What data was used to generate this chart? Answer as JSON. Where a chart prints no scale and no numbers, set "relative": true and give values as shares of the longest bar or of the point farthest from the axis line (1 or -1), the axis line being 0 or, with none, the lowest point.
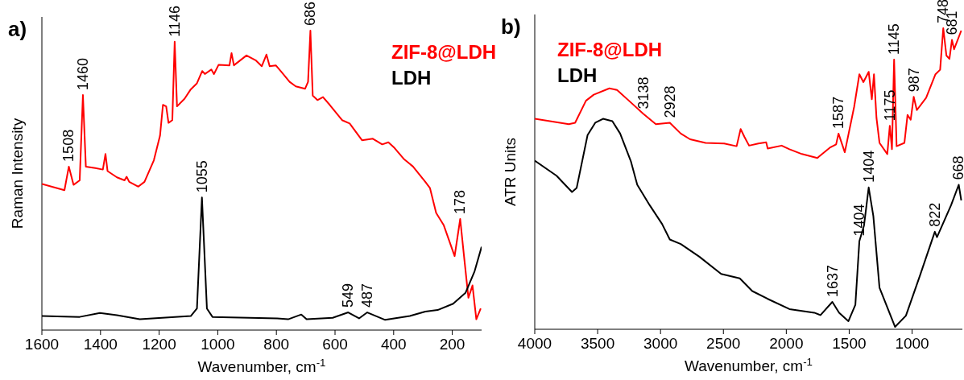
{
  "chart_data": [
    {
      "type": "line",
      "title": "a)",
      "xlabel": "Wavenumber, cm$^{-1}$",
      "ylabel": "Raman Intensity",
      "relative": true,
      "xlim": [
        1600,
        100
      ],
      "xticks": [
        1600,
        1400,
        1200,
        1000,
        800,
        600,
        400,
        200
      ],
      "tick_labels": "x",
      "legend": "top right",
      "series": [
        {
          "name": "ZIF-8@LDH",
          "color": "#ff0000",
          "x": [
            1600,
            1523,
            1508,
            1492,
            1471,
            1460,
            1450,
            1418,
            1392,
            1383,
            1376,
            1344,
            1318,
            1311,
            1302,
            1271,
            1250,
            1218,
            1197,
            1187,
            1176,
            1168,
            1155,
            1147,
            1139,
            1113,
            1092,
            1071,
            1053,
            1044,
            1022,
            1013,
            997,
            960,
            953,
            945,
            902,
            871,
            850,
            834,
            823,
            802,
            781,
            755,
            734,
            702,
            692,
            684,
            676,
            660,
            641,
            618,
            576,
            550,
            508,
            471,
            439,
            418,
            397,
            366,
            334,
            292,
            276,
            255,
            229,
            192,
            173,
            160,
            145,
            131,
            118,
            103
          ],
          "values": [
            0.488,
            0.467,
            0.546,
            0.485,
            0.5,
            0.785,
            0.546,
            0.541,
            0.536,
            0.588,
            0.531,
            0.51,
            0.5,
            0.512,
            0.495,
            0.479,
            0.495,
            0.567,
            0.649,
            0.752,
            0.747,
            0.692,
            0.701,
            0.963,
            0.747,
            0.773,
            0.804,
            0.824,
            0.865,
            0.855,
            0.87,
            0.855,
            0.886,
            0.884,
            0.925,
            0.884,
            0.917,
            0.901,
            0.881,
            0.92,
            0.881,
            0.884,
            0.86,
            0.829,
            0.814,
            0.806,
            0.829,
            1,
            0.783,
            0.768,
            0.778,
            0.752,
            0.701,
            0.69,
            0.634,
            0.639,
            0.62,
            0.627,
            0.608,
            0.572,
            0.546,
            0.495,
            0.474,
            0.391,
            0.35,
            0.247,
            0.371,
            0.247,
            0.108,
            0.149,
            0.036,
            0.072
          ]
        },
        {
          "name": "LDH",
          "color": "#000000",
          "x": [
            1600,
            1471,
            1402,
            1344,
            1266,
            1092,
            1071,
            1054,
            1037,
            1018,
            797,
            760,
            715,
            697,
            608,
            555,
            518,
            490,
            429,
            345,
            292,
            250,
            197,
            155,
            124,
            100
          ],
          "values": [
            0.047,
            0.044,
            0.057,
            0.05,
            0.036,
            0.047,
            0.072,
            0.443,
            0.072,
            0.044,
            0.039,
            0.036,
            0.052,
            0.036,
            0.041,
            0.059,
            0.039,
            0.059,
            0.034,
            0.047,
            0.062,
            0.067,
            0.088,
            0.124,
            0.196,
            0.278
          ]
        }
      ],
      "annotations": [
        {
          "text": "1508",
          "x": 1508,
          "y": 0.546
        },
        {
          "text": "1460",
          "x": 1460,
          "y": 0.785
        },
        {
          "text": "1146",
          "x": 1147,
          "y": 0.963
        },
        {
          "text": "686",
          "x": 684,
          "y": 1
        },
        {
          "text": "1055",
          "x": 1054,
          "y": 0.443
        },
        {
          "text": "178",
          "x": 173,
          "y": 0.371
        },
        {
          "text": "549",
          "x": 555,
          "y": 0.059
        },
        {
          "text": "487",
          "x": 490,
          "y": 0.059
        }
      ]
    },
    {
      "type": "line",
      "title": "b)",
      "xlabel": "Wavenumber, cm$^{-1}$",
      "ylabel": "ATR Units",
      "relative": true,
      "xlim": [
        4000,
        600
      ],
      "xticks": [
        4000,
        3500,
        3000,
        2500,
        2000,
        1500,
        1000
      ],
      "tick_labels": "x",
      "legend": "top left",
      "series": [
        {
          "name": "ZIF-8@LDH",
          "color": "#ff0000",
          "x": [
            4000,
            3729,
            3679,
            3593,
            3531,
            3407,
            3346,
            3235,
            3136,
            3037,
            2926,
            2839,
            2765,
            2642,
            2494,
            2395,
            2363,
            2333,
            2296,
            2222,
            2160,
            2148,
            2037,
            1975,
            1876,
            1753,
            1654,
            1604,
            1585,
            1535,
            1461,
            1419,
            1387,
            1345,
            1320,
            1303,
            1283,
            1259,
            1197,
            1177,
            1160,
            1143,
            1123,
            1061,
            1036,
            1011,
            987,
            962,
            888,
            814,
            777,
            752,
            727,
            703,
            683,
            666,
            609
          ],
          "values": [
            0.699,
            0.681,
            0.686,
            0.759,
            0.779,
            0.8,
            0.795,
            0.753,
            0.715,
            0.681,
            0.686,
            0.65,
            0.631,
            0.619,
            0.617,
            0.608,
            0.665,
            0.639,
            0.61,
            0.617,
            0.621,
            0.6,
            0.61,
            0.598,
            0.582,
            0.569,
            0.603,
            0.614,
            0.65,
            0.588,
            0.738,
            0.847,
            0.821,
            0.855,
            0.764,
            0.847,
            0.702,
            0.619,
            0.582,
            0.676,
            0.598,
            0.896,
            0.608,
            0.619,
            0.712,
            0.696,
            0.772,
            0.728,
            0.769,
            0.847,
            0.862,
            1,
            0.909,
            0.898,
            0.961,
            0.93,
            0.992
          ]
        },
        {
          "name": "LDH",
          "color": "#000000",
          "x": [
            4000,
            3827,
            3704,
            3667,
            3580,
            3519,
            3457,
            3383,
            3321,
            3235,
            3185,
            3086,
            2988,
            2926,
            2839,
            2691,
            2518,
            2370,
            2271,
            2148,
            1975,
            1777,
            1728,
            1634,
            1580,
            1506,
            1451,
            1419,
            1382,
            1345,
            1308,
            1259,
            1135,
            1049,
            937,
            819,
            802,
            690,
            629,
            609
          ],
          "values": [
            0.56,
            0.51,
            0.456,
            0.469,
            0.645,
            0.686,
            0.699,
            0.691,
            0.65,
            0.557,
            0.48,
            0.412,
            0.35,
            0.298,
            0.283,
            0.241,
            0.184,
            0.169,
            0.127,
            0.101,
            0.067,
            0.055,
            0.047,
            0.091,
            0.055,
            0.027,
            0.081,
            0.293,
            0.345,
            0.471,
            0.376,
            0.138,
            0.008,
            0.045,
            0.179,
            0.324,
            0.306,
            0.412,
            0.48,
            0.428
          ]
        }
      ],
      "annotations": [
        {
          "text": "3138",
          "x": 3136,
          "y": 0.715
        },
        {
          "text": "2928",
          "x": 2926,
          "y": 0.686
        },
        {
          "text": "1587",
          "x": 1585,
          "y": 0.65
        },
        {
          "text": "1175",
          "x": 1177,
          "y": 0.676
        },
        {
          "text": "1145",
          "x": 1143,
          "y": 0.896
        },
        {
          "text": "987",
          "x": 987,
          "y": 0.772
        },
        {
          "text": "748",
          "x": 752,
          "y": 1
        },
        {
          "text": "681",
          "x": 683,
          "y": 0.961
        },
        {
          "text": "668",
          "x": 629,
          "y": 0.48
        },
        {
          "text": "1637",
          "x": 1634,
          "y": 0.091
        },
        {
          "text": "1404",
          "x": 1419,
          "y": 0.293
        },
        {
          "text": "1404",
          "x": 1345,
          "y": 0.471
        },
        {
          "text": "822",
          "x": 819,
          "y": 0.324
        }
      ]
    }
  ]
}
